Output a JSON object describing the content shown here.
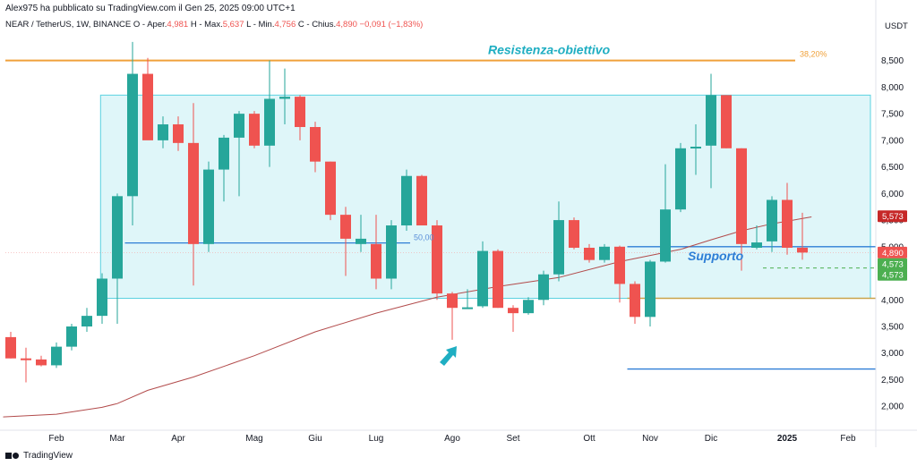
{
  "header": {
    "publisher": "Alex975 ha pubblicato su TradingView.com il Gen 25, 2025 09:00 UTC+1",
    "symbol": "NEAR / TetherUS, 1W, BINANCE",
    "open_label": "O - Aper.",
    "open_value": "4,981",
    "high_label": "H - Max.",
    "high_value": "5,637",
    "low_label": "L - Min.",
    "low_value": "4,756",
    "close_label": "C - Chius.",
    "close_value": "4,890",
    "change_value": "−0,091 (−1,83%)",
    "currency": "USDT"
  },
  "footer": {
    "brand": "TradingView"
  },
  "chart_data": {
    "type": "candlestick",
    "ylim": [
      1.6,
      9.1
    ],
    "y_ticks": [
      {
        "value": 8.5,
        "label": "8,500"
      },
      {
        "value": 8.0,
        "label": "8,000"
      },
      {
        "value": 7.5,
        "label": "7,500"
      },
      {
        "value": 7.0,
        "label": "7,000"
      },
      {
        "value": 6.5,
        "label": "6,500"
      },
      {
        "value": 6.0,
        "label": "6,000"
      },
      {
        "value": 5.5,
        "label": "5,500"
      },
      {
        "value": 5.0,
        "label": "5,000"
      },
      {
        "value": 4.5,
        "label": "4,500"
      },
      {
        "value": 4.0,
        "label": "4,000"
      },
      {
        "value": 3.5,
        "label": "3,500"
      },
      {
        "value": 3.0,
        "label": "3,000"
      },
      {
        "value": 2.5,
        "label": "2,500"
      },
      {
        "value": 2.0,
        "label": "2,000"
      }
    ],
    "x_ticks": [
      {
        "index": 3,
        "label": "Feb"
      },
      {
        "index": 7,
        "label": "Mar"
      },
      {
        "index": 11,
        "label": "Apr"
      },
      {
        "index": 16,
        "label": "Mag"
      },
      {
        "index": 20,
        "label": "Giu"
      },
      {
        "index": 24,
        "label": "Lug"
      },
      {
        "index": 29,
        "label": "Ago"
      },
      {
        "index": 33,
        "label": "Set"
      },
      {
        "index": 38,
        "label": "Ott"
      },
      {
        "index": 42,
        "label": "Nov"
      },
      {
        "index": 46,
        "label": "Dic"
      },
      {
        "index": 51,
        "label": "2025",
        "bold": true
      },
      {
        "index": 55,
        "label": "Feb"
      }
    ],
    "candles": [
      {
        "o": 3.3,
        "h": 3.4,
        "l": 2.9,
        "c": 2.9
      },
      {
        "o": 2.9,
        "h": 3.1,
        "l": 2.45,
        "c": 2.88
      },
      {
        "o": 2.88,
        "h": 2.95,
        "l": 2.75,
        "c": 2.77
      },
      {
        "o": 2.77,
        "h": 3.2,
        "l": 2.72,
        "c": 3.12
      },
      {
        "o": 3.12,
        "h": 3.55,
        "l": 3.05,
        "c": 3.5
      },
      {
        "o": 3.5,
        "h": 3.85,
        "l": 3.4,
        "c": 3.7
      },
      {
        "o": 3.7,
        "h": 4.5,
        "l": 3.55,
        "c": 4.4
      },
      {
        "o": 4.4,
        "h": 6.0,
        "l": 3.55,
        "c": 5.95
      },
      {
        "o": 5.95,
        "h": 8.85,
        "l": 5.4,
        "c": 8.25
      },
      {
        "o": 8.25,
        "h": 8.55,
        "l": 7.05,
        "c": 7.0
      },
      {
        "o": 7.0,
        "h": 7.45,
        "l": 6.85,
        "c": 7.3
      },
      {
        "o": 7.3,
        "h": 7.45,
        "l": 6.8,
        "c": 6.95
      },
      {
        "o": 6.95,
        "h": 7.7,
        "l": 4.27,
        "c": 5.05
      },
      {
        "o": 5.05,
        "h": 6.6,
        "l": 4.9,
        "c": 6.45
      },
      {
        "o": 6.45,
        "h": 7.1,
        "l": 5.85,
        "c": 7.05
      },
      {
        "o": 7.05,
        "h": 7.55,
        "l": 5.95,
        "c": 7.5
      },
      {
        "o": 7.5,
        "h": 7.55,
        "l": 6.85,
        "c": 6.9
      },
      {
        "o": 6.9,
        "h": 8.5,
        "l": 6.5,
        "c": 7.78
      },
      {
        "o": 7.78,
        "h": 8.35,
        "l": 7.3,
        "c": 7.82
      },
      {
        "o": 7.82,
        "h": 7.85,
        "l": 7.0,
        "c": 7.25
      },
      {
        "o": 7.25,
        "h": 7.35,
        "l": 6.4,
        "c": 6.6
      },
      {
        "o": 6.6,
        "h": 6.6,
        "l": 5.5,
        "c": 5.6
      },
      {
        "o": 5.6,
        "h": 5.75,
        "l": 4.45,
        "c": 5.15
      },
      {
        "o": 5.05,
        "h": 5.6,
        "l": 4.9,
        "c": 5.15
      },
      {
        "o": 5.05,
        "h": 5.6,
        "l": 4.2,
        "c": 4.4
      },
      {
        "o": 4.4,
        "h": 5.5,
        "l": 4.2,
        "c": 5.4
      },
      {
        "o": 5.4,
        "h": 6.45,
        "l": 5.3,
        "c": 6.33
      },
      {
        "o": 6.33,
        "h": 6.35,
        "l": 5.4,
        "c": 5.4
      },
      {
        "o": 5.4,
        "h": 5.5,
        "l": 4.0,
        "c": 4.12
      },
      {
        "o": 4.12,
        "h": 4.15,
        "l": 3.25,
        "c": 3.85
      },
      {
        "o": 3.85,
        "h": 4.2,
        "l": 3.85,
        "c": 3.86
      },
      {
        "o": 3.88,
        "h": 5.1,
        "l": 3.85,
        "c": 4.92
      },
      {
        "o": 4.92,
        "h": 4.95,
        "l": 3.85,
        "c": 3.85
      },
      {
        "o": 3.85,
        "h": 3.9,
        "l": 3.4,
        "c": 3.75
      },
      {
        "o": 3.75,
        "h": 4.05,
        "l": 3.72,
        "c": 4.0
      },
      {
        "o": 4.0,
        "h": 4.55,
        "l": 3.9,
        "c": 4.48
      },
      {
        "o": 4.48,
        "h": 5.85,
        "l": 4.35,
        "c": 5.5
      },
      {
        "o": 5.5,
        "h": 5.55,
        "l": 4.95,
        "c": 4.98
      },
      {
        "o": 4.98,
        "h": 5.05,
        "l": 4.7,
        "c": 4.75
      },
      {
        "o": 4.75,
        "h": 5.05,
        "l": 4.7,
        "c": 5.0
      },
      {
        "o": 5.0,
        "h": 5.02,
        "l": 3.95,
        "c": 4.3
      },
      {
        "o": 4.3,
        "h": 4.35,
        "l": 3.55,
        "c": 3.68
      },
      {
        "o": 3.68,
        "h": 4.75,
        "l": 3.5,
        "c": 4.72
      },
      {
        "o": 4.72,
        "h": 6.55,
        "l": 4.7,
        "c": 5.7
      },
      {
        "o": 5.7,
        "h": 6.95,
        "l": 5.65,
        "c": 6.85
      },
      {
        "o": 6.85,
        "h": 7.3,
        "l": 6.35,
        "c": 6.88
      },
      {
        "o": 6.9,
        "h": 8.25,
        "l": 6.1,
        "c": 7.85
      },
      {
        "o": 7.85,
        "h": 7.85,
        "l": 6.85,
        "c": 6.85
      },
      {
        "o": 6.85,
        "h": 6.85,
        "l": 4.55,
        "c": 5.05
      },
      {
        "o": 4.98,
        "h": 5.4,
        "l": 4.95,
        "c": 5.08
      },
      {
        "o": 5.1,
        "h": 5.95,
        "l": 4.9,
        "c": 5.88
      },
      {
        "o": 5.88,
        "h": 6.2,
        "l": 4.85,
        "c": 4.98
      },
      {
        "o": 4.981,
        "h": 5.637,
        "l": 4.756,
        "c": 4.89
      }
    ],
    "moving_average": [
      {
        "i": -0.5,
        "v": 1.8
      },
      {
        "i": 3,
        "v": 1.85
      },
      {
        "i": 6,
        "v": 1.98
      },
      {
        "i": 7,
        "v": 2.05
      },
      {
        "i": 9,
        "v": 2.3
      },
      {
        "i": 12,
        "v": 2.55
      },
      {
        "i": 16,
        "v": 2.95
      },
      {
        "i": 20,
        "v": 3.4
      },
      {
        "i": 24,
        "v": 3.75
      },
      {
        "i": 28,
        "v": 4.05
      },
      {
        "i": 32,
        "v": 4.25
      },
      {
        "i": 36,
        "v": 4.42
      },
      {
        "i": 40,
        "v": 4.72
      },
      {
        "i": 44,
        "v": 4.95
      },
      {
        "i": 46,
        "v": 5.13
      },
      {
        "i": 48,
        "v": 5.3
      },
      {
        "i": 50,
        "v": 5.43
      },
      {
        "i": 52.6,
        "v": 5.56
      }
    ],
    "levels": {
      "fib_level": 8.5,
      "fib_label": "38,20%",
      "resistance_label": "Resistenza-obiettivo",
      "box_top": 7.85,
      "box_bottom": 4.03,
      "mid_line": 5.07,
      "mid_label": "50,00",
      "support_level": 5.0,
      "support_label": "Supporto",
      "lower_line": 2.7,
      "dashed_level": 4.6
    },
    "price_tags": [
      {
        "value": 5.573,
        "label": "5,573",
        "color": "#c62828"
      },
      {
        "value": 4.89,
        "label": "4,890",
        "color": "#ef5350"
      },
      {
        "value": 4.573,
        "label": "4,573",
        "color": "#4caf50"
      },
      {
        "value": 4.573,
        "label": "4,573",
        "color": "#4caf50"
      }
    ],
    "colors": {
      "up": "#26a69a",
      "down": "#ef5350",
      "box_fill": "#dff6f9",
      "box_stroke": "#5bd1e0",
      "fib": "#f0a13a",
      "support": "#2e7ed6",
      "ma": "#b24b4b",
      "annotation": "#1faec2"
    }
  }
}
